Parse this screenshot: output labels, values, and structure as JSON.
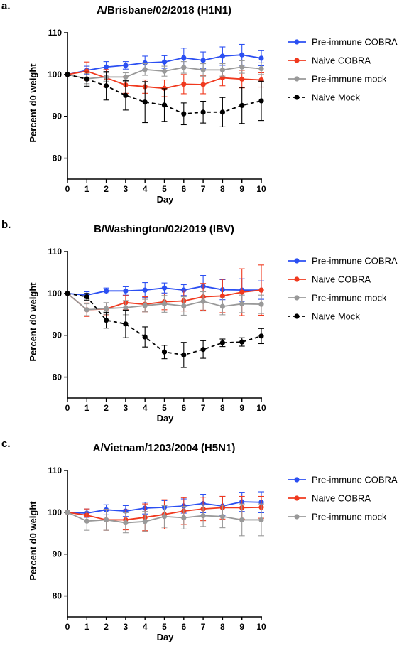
{
  "chart_data": [
    {
      "type": "line",
      "panel_label": "a.",
      "title": "A/Brisbane/02/2018 (H1N1)",
      "xlabel": "Day",
      "ylabel": "Percent d0 weight",
      "xlim": [
        0,
        10
      ],
      "ylim": [
        75,
        110
      ],
      "x_ticks": [
        "0",
        "1",
        "2",
        "3",
        "4",
        "5",
        "6",
        "7",
        "8",
        "9",
        "10"
      ],
      "y_ticks": [
        "80",
        "90",
        "100",
        "110"
      ],
      "legend_position": "right",
      "x": [
        0,
        1,
        2,
        3,
        4,
        5,
        6,
        7,
        8,
        9,
        10
      ],
      "series": [
        {
          "name": "Pre-immune COBRA",
          "color": "#2b4ff2",
          "dashed": false,
          "values": [
            100,
            101,
            101.8,
            102.2,
            102.8,
            103,
            104,
            103.4,
            104.4,
            104.7,
            103.9
          ],
          "errors": [
            0,
            1.0,
            1.3,
            0.9,
            1.6,
            1.5,
            2.3,
            2.0,
            2.2,
            2.5,
            1.8
          ]
        },
        {
          "name": "Naive COBRA",
          "color": "#f0391e",
          "dashed": false,
          "values": [
            100,
            100.8,
            99.2,
            97.5,
            97.1,
            96.7,
            97.7,
            97.6,
            99.2,
            98.9,
            98.7
          ],
          "errors": [
            0,
            2.2,
            2.0,
            2.0,
            1.6,
            2.0,
            2.3,
            2.2,
            1.9,
            2.1,
            1.7
          ]
        },
        {
          "name": "Pre-immune mock",
          "color": "#999999",
          "dashed": false,
          "values": [
            100,
            99,
            99.4,
            99.4,
            101.2,
            100.8,
            101.7,
            101.1,
            101.1,
            101.8,
            101.4
          ],
          "errors": [
            0,
            1.2,
            1.0,
            1.0,
            1.4,
            1.2,
            1.4,
            1.5,
            1.5,
            1.5,
            1.4
          ]
        },
        {
          "name": "Naive Mock",
          "color": "#000000",
          "dashed": true,
          "values": [
            100,
            98.9,
            97.3,
            95,
            93.4,
            92.7,
            90.6,
            91,
            91,
            92.6,
            93.7
          ],
          "errors": [
            0,
            1.7,
            3.4,
            3.5,
            4.9,
            3.9,
            2.6,
            2.6,
            3.5,
            4.3,
            4.7
          ]
        }
      ]
    },
    {
      "type": "line",
      "panel_label": "b.",
      "title": "B/Washington/02/2019 (IBV)",
      "xlabel": "Day",
      "ylabel": "Percent d0 weight",
      "xlim": [
        0,
        10
      ],
      "ylim": [
        75,
        110
      ],
      "x_ticks": [
        "0",
        "1",
        "2",
        "3",
        "4",
        "5",
        "6",
        "7",
        "8",
        "9",
        "10"
      ],
      "y_ticks": [
        "80",
        "90",
        "100",
        "110"
      ],
      "legend_position": "right",
      "x": [
        0,
        1,
        2,
        3,
        4,
        5,
        6,
        7,
        8,
        9,
        10
      ],
      "series": [
        {
          "name": "Pre-immune COBRA",
          "color": "#2b4ff2",
          "dashed": false,
          "values": [
            100,
            99.6,
            100.6,
            100.6,
            100.8,
            101.3,
            100.8,
            101.7,
            100.9,
            100.8,
            100.8
          ],
          "errors": [
            0,
            0.8,
            0.7,
            1.0,
            1.8,
            1.2,
            1.3,
            2.6,
            2.4,
            2.7,
            2.2
          ]
        },
        {
          "name": "Naive COBRA",
          "color": "#f0391e",
          "dashed": false,
          "values": [
            100,
            96.1,
            96.3,
            97.8,
            97.4,
            98,
            98.2,
            99.2,
            99.4,
            100.3,
            100.8
          ],
          "errors": [
            0,
            1.6,
            1.4,
            1.7,
            1.8,
            1.9,
            2.4,
            3.2,
            4.0,
            5.6,
            6.0
          ]
        },
        {
          "name": "Pre-immune mock",
          "color": "#999999",
          "dashed": false,
          "values": [
            100,
            96.1,
            96.4,
            96.6,
            97.1,
            97.5,
            97,
            98.1,
            96.9,
            97.5,
            97.4
          ],
          "errors": [
            0,
            1.4,
            1.4,
            1.7,
            1.5,
            2.0,
            2.2,
            2.3,
            2.0,
            2.1,
            2.2
          ]
        },
        {
          "name": "Naive Mock",
          "color": "#000000",
          "dashed": true,
          "values": [
            100,
            99.2,
            93.6,
            92.7,
            89.6,
            86,
            85.3,
            86.6,
            88.2,
            88.4,
            89.8
          ],
          "errors": [
            0,
            0.8,
            1.9,
            3.3,
            2.4,
            1.6,
            3.0,
            2.1,
            0.9,
            1.0,
            1.8
          ]
        }
      ]
    },
    {
      "type": "line",
      "panel_label": "c.",
      "title": "A/Vietnam/1203/2004 (H5N1)",
      "xlabel": "Day",
      "ylabel": "Percent d0 weight",
      "xlim": [
        0,
        10
      ],
      "ylim": [
        75,
        110
      ],
      "x_ticks": [
        "0",
        "1",
        "2",
        "3",
        "4",
        "5",
        "6",
        "7",
        "8",
        "9",
        "10"
      ],
      "y_ticks": [
        "80",
        "90",
        "100",
        "110"
      ],
      "legend_position": "right",
      "x": [
        0,
        1,
        2,
        3,
        4,
        5,
        6,
        7,
        8,
        9,
        10
      ],
      "series": [
        {
          "name": "Pre-immune COBRA",
          "color": "#2b4ff2",
          "dashed": false,
          "values": [
            100,
            99.8,
            100.6,
            100.3,
            101,
            101.2,
            101.5,
            102.1,
            101.5,
            102.5,
            102.4
          ],
          "errors": [
            0,
            1.0,
            1.2,
            1.3,
            1.4,
            1.6,
            1.7,
            2.2,
            2.3,
            2.3,
            2.5
          ]
        },
        {
          "name": "Naive COBRA",
          "color": "#f0391e",
          "dashed": false,
          "values": [
            100,
            99.3,
            98.2,
            98.2,
            98.8,
            99.5,
            100.3,
            100.8,
            101.1,
            101.1,
            101.2
          ],
          "errors": [
            0,
            1.5,
            2.5,
            2.4,
            3.2,
            3.5,
            3.2,
            2.8,
            2.7,
            2.7,
            2.6
          ]
        },
        {
          "name": "Pre-immune mock",
          "color": "#999999",
          "dashed": false,
          "values": [
            100,
            97.9,
            98.2,
            97.5,
            97.8,
            99,
            98.7,
            99.2,
            99,
            98.2,
            98.2
          ],
          "errors": [
            0,
            2.2,
            2.5,
            2.4,
            2.4,
            2.6,
            2.7,
            2.6,
            2.7,
            3.8,
            3.8
          ]
        }
      ]
    }
  ]
}
